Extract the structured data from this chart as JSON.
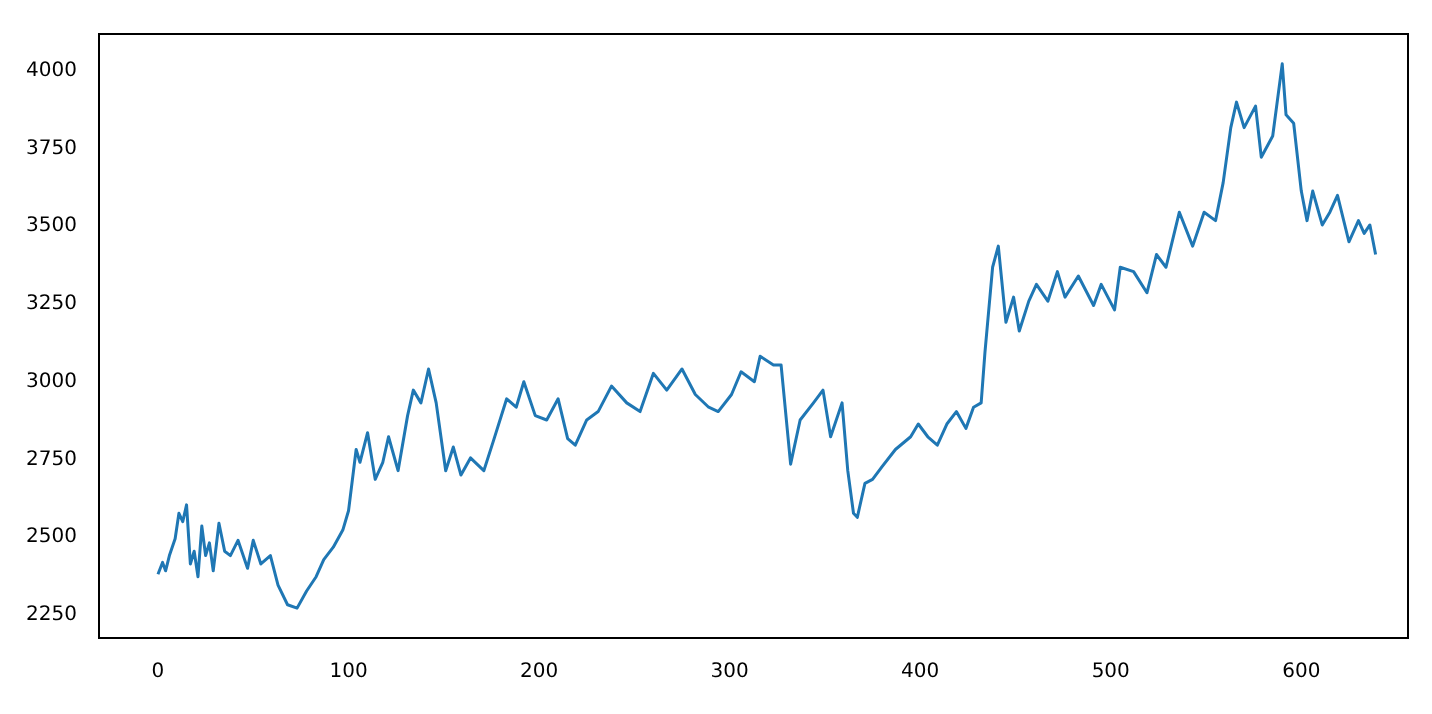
{
  "chart_data": {
    "type": "line",
    "x": [
      0,
      2.4,
      4,
      6,
      9,
      11,
      13,
      15,
      17,
      19,
      21,
      23,
      25,
      27,
      29,
      32,
      35,
      38,
      42,
      47,
      50,
      54,
      59,
      63,
      68,
      73,
      78,
      83,
      87,
      92,
      97,
      100,
      104,
      106,
      110,
      114,
      118,
      121,
      126,
      131,
      134,
      138,
      142,
      146,
      151,
      155,
      159,
      164,
      171,
      176,
      183,
      188,
      192,
      198,
      204,
      210,
      215,
      219,
      225,
      231,
      238,
      246,
      253,
      260,
      267,
      275,
      282,
      289,
      294,
      301,
      306,
      313,
      316,
      323,
      327,
      332,
      337,
      344,
      349,
      353,
      359,
      362,
      365,
      367,
      371,
      375,
      380,
      387,
      395,
      399,
      404,
      409,
      414,
      419,
      424,
      428,
      432,
      434,
      438,
      441,
      445,
      449,
      452,
      457,
      461,
      467,
      472,
      476,
      483,
      491,
      495,
      502,
      505,
      512,
      519,
      524,
      529,
      536,
      543,
      549,
      555,
      559,
      563,
      566,
      570,
      576,
      579,
      585,
      590,
      592,
      596,
      600,
      603,
      606,
      611,
      615,
      619,
      625,
      630,
      633,
      636,
      639
    ],
    "series": [
      {
        "color": "#1f77b4",
        "values": [
          2381,
          2419,
          2392,
          2441,
          2495,
          2577,
          2550,
          2604,
          2414,
          2455,
          2373,
          2536,
          2441,
          2482,
          2392,
          2545,
          2455,
          2441,
          2490,
          2400,
          2490,
          2414,
          2441,
          2346,
          2283,
          2272,
          2327,
          2373,
          2428,
          2468,
          2523,
          2585,
          2782,
          2741,
          2836,
          2686,
          2741,
          2823,
          2714,
          2891,
          2973,
          2932,
          3041,
          2932,
          2714,
          2790,
          2700,
          2755,
          2714,
          2809,
          2945,
          2918,
          3000,
          2891,
          2877,
          2945,
          2817,
          2796,
          2877,
          2904,
          2986,
          2932,
          2904,
          3027,
          2973,
          3041,
          2959,
          2918,
          2904,
          2959,
          3032,
          3000,
          3082,
          3054,
          3054,
          2735,
          2877,
          2932,
          2973,
          2823,
          2932,
          2714,
          2577,
          2564,
          2673,
          2686,
          2727,
          2782,
          2823,
          2864,
          2823,
          2796,
          2864,
          2904,
          2850,
          2918,
          2932,
          3095,
          3368,
          3436,
          3191,
          3272,
          3163,
          3259,
          3313,
          3259,
          3354,
          3272,
          3340,
          3245,
          3313,
          3231,
          3368,
          3354,
          3286,
          3409,
          3368,
          3545,
          3436,
          3545,
          3518,
          3640,
          3817,
          3899,
          3817,
          3886,
          3722,
          3790,
          4022,
          3858,
          3831,
          3613,
          3518,
          3613,
          3504,
          3545,
          3599,
          3450,
          3518,
          3477,
          3504,
          3409
        ]
      }
    ],
    "xlim": [
      -31,
      656
    ],
    "ylim": [
      2176,
      4118
    ],
    "xticks": [
      0,
      100,
      200,
      300,
      400,
      500,
      600
    ],
    "yticks": [
      2250,
      2500,
      2750,
      3000,
      3250,
      3500,
      3750,
      4000
    ],
    "grid": false,
    "legend": false,
    "marker": "none",
    "line_style": "solid"
  }
}
